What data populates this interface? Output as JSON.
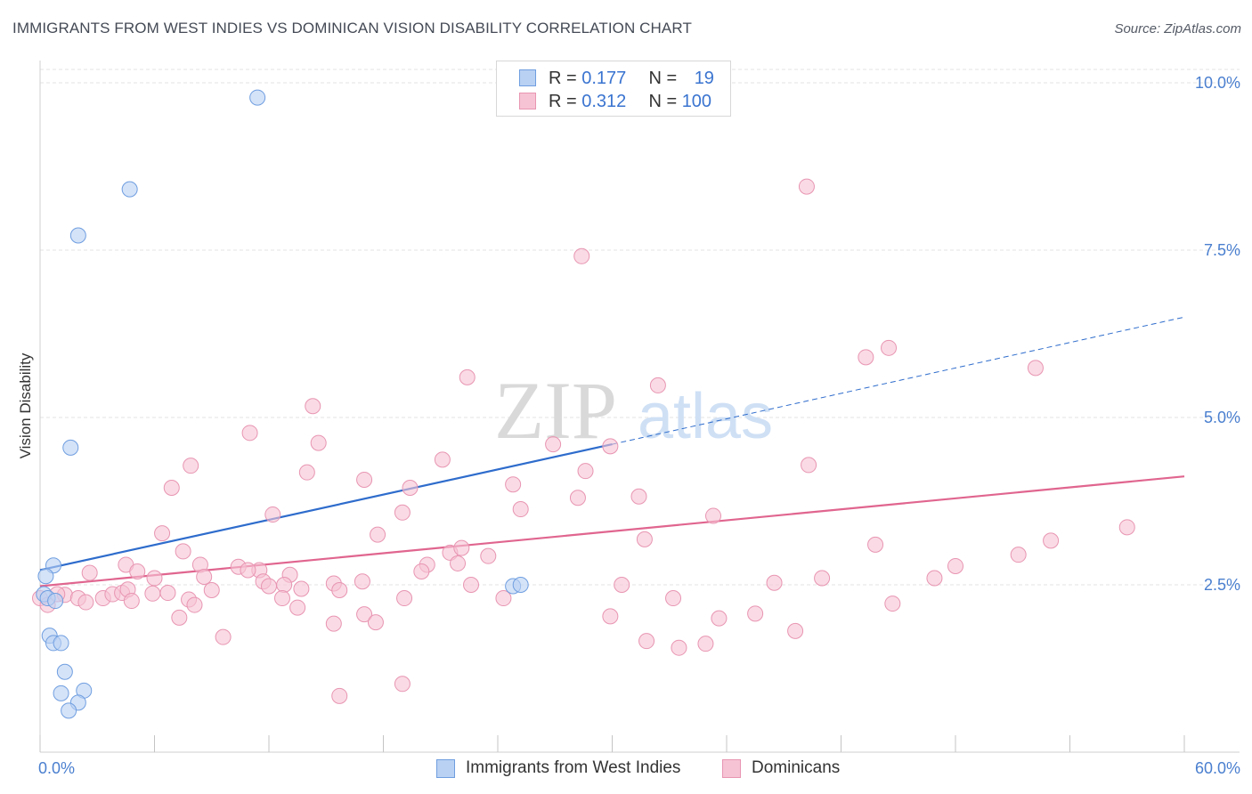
{
  "title": "IMMIGRANTS FROM WEST INDIES VS DOMINICAN VISION DISABILITY CORRELATION CHART",
  "source": "Source: ZipAtlas.com",
  "watermark": {
    "zip": "ZIP",
    "atlas": "atlas"
  },
  "legend_top": {
    "rows": [
      {
        "r_label": "R = ",
        "r_value": "0.177",
        "n_label": "N = ",
        "n_value": "19"
      },
      {
        "r_label": "R = ",
        "r_value": "0.312",
        "n_label": "N = ",
        "n_value": "100"
      }
    ]
  },
  "colors": {
    "blue_fill": "#b9d1f3",
    "blue_stroke": "#6f9ee0",
    "blue_line": "#2e6ccc",
    "pink_fill": "#f6c3d4",
    "pink_stroke": "#e895b2",
    "pink_line": "#e0658f",
    "tick_text": "#4a7fcf",
    "grid": "#e3e3e3"
  },
  "chart_data": {
    "type": "scatter",
    "title": "IMMIGRANTS FROM WEST INDIES VS DOMINICAN VISION DISABILITY CORRELATION CHART",
    "xlabel": "",
    "ylabel": "Vision Disability",
    "xlim": [
      0,
      60
    ],
    "ylim": [
      0,
      10.2
    ],
    "x_ticks": [
      "0.0%",
      "60.0%"
    ],
    "y_ticks": [
      {
        "value": 2.5,
        "label": "2.5%"
      },
      {
        "value": 5.0,
        "label": "5.0%"
      },
      {
        "value": 7.5,
        "label": "7.5%"
      },
      {
        "value": 10.0,
        "label": "10.0%"
      }
    ],
    "grid": true,
    "legend_position": "bottom",
    "series": [
      {
        "name": "Immigrants from West Indies",
        "color": "#6f9ee0",
        "r": 0.177,
        "n": 19,
        "trend": {
          "x0": 0,
          "y0": 2.72,
          "x1": 30,
          "y1": 4.6,
          "x_ext": 60,
          "y_ext": 6.5
        },
        "points": [
          [
            11.4,
            9.78
          ],
          [
            4.7,
            8.41
          ],
          [
            2.0,
            7.72
          ],
          [
            1.6,
            4.55
          ],
          [
            0.7,
            2.79
          ],
          [
            0.3,
            2.63
          ],
          [
            0.2,
            2.36
          ],
          [
            0.4,
            2.3
          ],
          [
            0.8,
            2.26
          ],
          [
            0.5,
            1.74
          ],
          [
            0.7,
            1.63
          ],
          [
            1.1,
            1.63
          ],
          [
            1.3,
            1.2
          ],
          [
            1.1,
            0.88
          ],
          [
            2.3,
            0.92
          ],
          [
            2.0,
            0.74
          ],
          [
            1.5,
            0.62
          ],
          [
            24.8,
            2.48
          ],
          [
            25.2,
            2.5
          ]
        ]
      },
      {
        "name": "Dominicans",
        "color": "#e895b2",
        "r": 0.312,
        "n": 100,
        "trend": {
          "x0": 0,
          "y0": 2.48,
          "x1": 60,
          "y1": 4.12
        },
        "points": [
          [
            40.2,
            8.45
          ],
          [
            28.4,
            7.41
          ],
          [
            43.3,
            5.9
          ],
          [
            44.5,
            6.04
          ],
          [
            52.2,
            5.74
          ],
          [
            22.4,
            5.6
          ],
          [
            32.4,
            5.48
          ],
          [
            14.3,
            5.17
          ],
          [
            11.0,
            4.77
          ],
          [
            14.6,
            4.62
          ],
          [
            26.9,
            4.6
          ],
          [
            29.9,
            4.57
          ],
          [
            21.1,
            4.37
          ],
          [
            7.9,
            4.28
          ],
          [
            40.3,
            4.29
          ],
          [
            14.0,
            4.18
          ],
          [
            28.6,
            4.2
          ],
          [
            17.0,
            4.07
          ],
          [
            6.9,
            3.95
          ],
          [
            19.4,
            3.95
          ],
          [
            24.8,
            4.0
          ],
          [
            28.2,
            3.8
          ],
          [
            31.4,
            3.82
          ],
          [
            12.2,
            3.55
          ],
          [
            19.0,
            3.58
          ],
          [
            25.2,
            3.63
          ],
          [
            35.3,
            3.53
          ],
          [
            57.0,
            3.36
          ],
          [
            6.4,
            3.27
          ],
          [
            17.7,
            3.25
          ],
          [
            31.7,
            3.18
          ],
          [
            53.0,
            3.16
          ],
          [
            43.8,
            3.1
          ],
          [
            7.5,
            3.0
          ],
          [
            21.5,
            2.98
          ],
          [
            22.1,
            3.05
          ],
          [
            23.5,
            2.93
          ],
          [
            51.3,
            2.95
          ],
          [
            4.5,
            2.8
          ],
          [
            8.4,
            2.8
          ],
          [
            10.4,
            2.77
          ],
          [
            20.3,
            2.8
          ],
          [
            21.9,
            2.82
          ],
          [
            48.0,
            2.78
          ],
          [
            2.6,
            2.68
          ],
          [
            11.5,
            2.72
          ],
          [
            13.1,
            2.65
          ],
          [
            5.1,
            2.7
          ],
          [
            20.0,
            2.7
          ],
          [
            10.9,
            2.72
          ],
          [
            8.6,
            2.62
          ],
          [
            6.0,
            2.6
          ],
          [
            11.7,
            2.55
          ],
          [
            12.8,
            2.5
          ],
          [
            12.0,
            2.48
          ],
          [
            15.4,
            2.52
          ],
          [
            16.9,
            2.55
          ],
          [
            22.6,
            2.5
          ],
          [
            30.5,
            2.5
          ],
          [
            41.0,
            2.6
          ],
          [
            38.5,
            2.53
          ],
          [
            46.9,
            2.6
          ],
          [
            1.3,
            2.35
          ],
          [
            2.0,
            2.3
          ],
          [
            2.4,
            2.24
          ],
          [
            3.3,
            2.3
          ],
          [
            3.8,
            2.36
          ],
          [
            4.3,
            2.38
          ],
          [
            4.6,
            2.43
          ],
          [
            4.8,
            2.26
          ],
          [
            5.9,
            2.37
          ],
          [
            6.7,
            2.38
          ],
          [
            7.8,
            2.28
          ],
          [
            9.0,
            2.42
          ],
          [
            12.7,
            2.3
          ],
          [
            13.7,
            2.44
          ],
          [
            15.7,
            2.42
          ],
          [
            19.1,
            2.3
          ],
          [
            24.3,
            2.3
          ],
          [
            33.2,
            2.3
          ],
          [
            44.7,
            2.22
          ],
          [
            8.1,
            2.2
          ],
          [
            13.5,
            2.16
          ],
          [
            17.0,
            2.06
          ],
          [
            17.6,
            1.94
          ],
          [
            29.9,
            2.03
          ],
          [
            35.6,
            2.0
          ],
          [
            37.5,
            2.07
          ],
          [
            7.3,
            2.01
          ],
          [
            15.4,
            1.92
          ],
          [
            39.6,
            1.81
          ],
          [
            9.6,
            1.72
          ],
          [
            31.8,
            1.66
          ],
          [
            33.5,
            1.56
          ],
          [
            34.9,
            1.62
          ],
          [
            19.0,
            1.02
          ],
          [
            15.7,
            0.84
          ],
          [
            0.0,
            2.3
          ],
          [
            0.4,
            2.2
          ],
          [
            0.9,
            2.36
          ]
        ]
      }
    ]
  },
  "bottom_legend": [
    {
      "label": "Immigrants from West Indies"
    },
    {
      "label": "Dominicans"
    }
  ]
}
